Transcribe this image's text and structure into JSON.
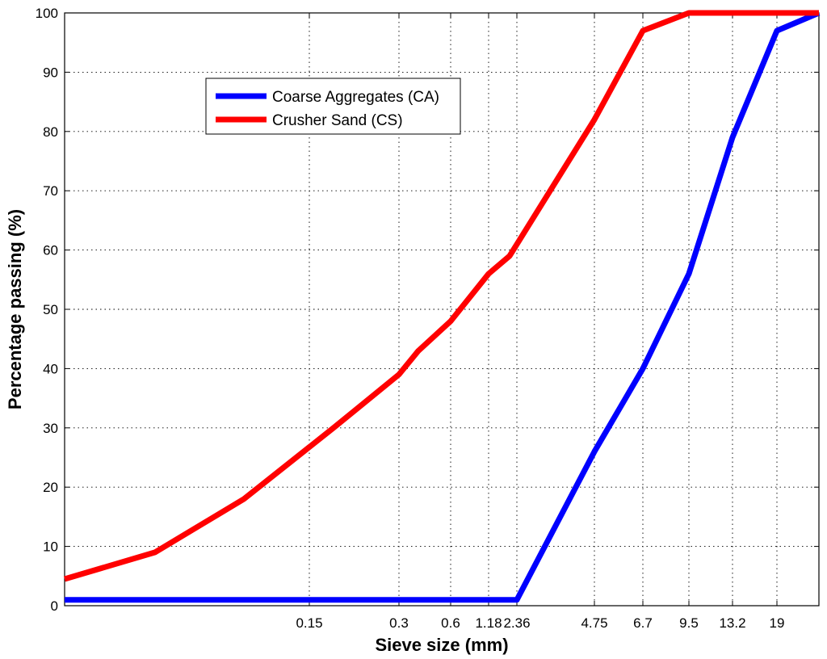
{
  "chart_data": {
    "type": "line",
    "title": "",
    "xlabel": "Sieve size (mm)",
    "ylabel": "Percentage passing (%)",
    "ylim": [
      0,
      100
    ],
    "y_ticks": [
      0,
      10,
      20,
      30,
      40,
      50,
      60,
      70,
      80,
      90,
      100
    ],
    "x_ticks": [
      {
        "value": 0.15,
        "label": "0.15"
      },
      {
        "value": 0.3,
        "label": "0.3"
      },
      {
        "value": 0.6,
        "label": "0.6"
      },
      {
        "value": 1.18,
        "label": "1.18"
      },
      {
        "value": 2.36,
        "label": "2.36"
      },
      {
        "value": 4.75,
        "label": "4.75"
      },
      {
        "value": 6.7,
        "label": "6.7"
      },
      {
        "value": 9.5,
        "label": "9.5"
      },
      {
        "value": 13.2,
        "label": "13.2"
      },
      {
        "value": 19,
        "label": "19"
      }
    ],
    "grid": true,
    "legend_position": "top-left",
    "series": [
      {
        "name": "Coarse Aggregates (CA)",
        "color": "#0000ff",
        "points": [
          {
            "x": 0.0,
            "y": 1
          },
          {
            "x": 2.36,
            "y": 1
          },
          {
            "x": 4.75,
            "y": 26
          },
          {
            "x": 6.7,
            "y": 40
          },
          {
            "x": 9.5,
            "y": 56
          },
          {
            "x": 13.2,
            "y": 79
          },
          {
            "x": 19,
            "y": 97
          },
          {
            "x": 22.5,
            "y": 100
          }
        ]
      },
      {
        "name": "Crusher Sand (CS)",
        "color": "#ff0000",
        "points": [
          {
            "x": 0.0,
            "y": 4.5
          },
          {
            "x": 0.05,
            "y": 9
          },
          {
            "x": 0.098,
            "y": 18
          },
          {
            "x": 0.18,
            "y": 30
          },
          {
            "x": 0.3,
            "y": 39
          },
          {
            "x": 0.42,
            "y": 43
          },
          {
            "x": 0.6,
            "y": 48
          },
          {
            "x": 1.18,
            "y": 56
          },
          {
            "x": 2.0,
            "y": 59
          },
          {
            "x": 4.75,
            "y": 82
          },
          {
            "x": 6.7,
            "y": 97
          },
          {
            "x": 9.5,
            "y": 100
          },
          {
            "x": 22.5,
            "y": 100
          }
        ]
      }
    ]
  }
}
